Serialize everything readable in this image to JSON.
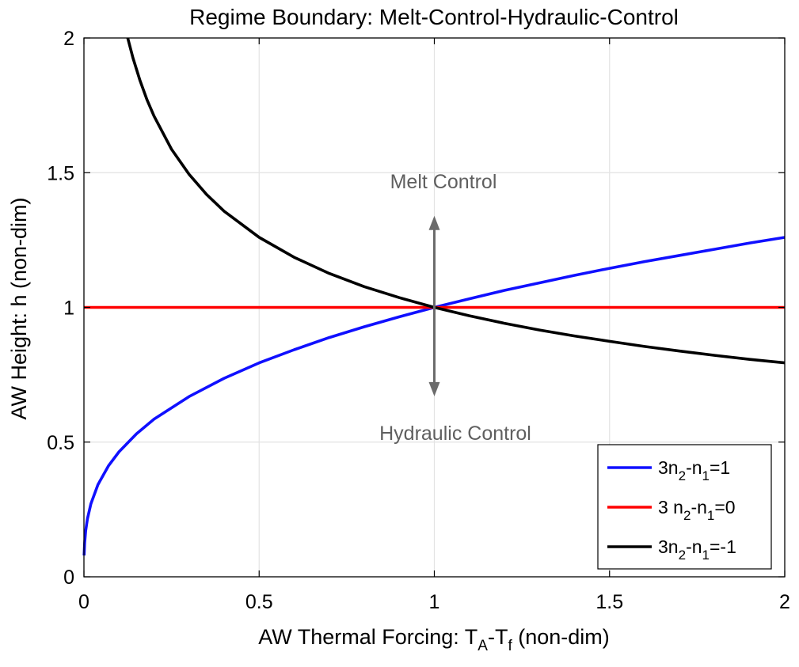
{
  "chart_data": {
    "type": "line",
    "title": "Regime Boundary: Melt-Control-Hydraulic-Control",
    "xlabel": {
      "prefix": "AW Thermal Forcing: T",
      "sub1": "A",
      "mid": "-T",
      "sub2": "f",
      "suffix": " (non-dim)"
    },
    "ylabel": "AW Height: h (non-dim)",
    "xlim": [
      0,
      2
    ],
    "ylim": [
      0,
      2
    ],
    "xticks": [
      0,
      0.5,
      1,
      1.5,
      2
    ],
    "xtick_labels": [
      "0",
      "0.5",
      "1",
      "1.5",
      "2"
    ],
    "yticks": [
      0,
      0.5,
      1,
      1.5,
      2
    ],
    "ytick_labels": [
      "0",
      "0.5",
      "1",
      "1.5",
      "2"
    ],
    "grid": true,
    "legend_position": "bottom-right",
    "series": [
      {
        "legend": {
          "a": "3n",
          "s1": "2",
          "b": "-n",
          "s2": "1",
          "c": "=1"
        },
        "color": "#1010ff",
        "x": [
          0.0005,
          0.002,
          0.005,
          0.01,
          0.02,
          0.04,
          0.07,
          0.1,
          0.15,
          0.2,
          0.3,
          0.4,
          0.5,
          0.6,
          0.7,
          0.8,
          0.9,
          1.0,
          1.1,
          1.2,
          1.3,
          1.4,
          1.5,
          1.6,
          1.7,
          1.8,
          1.9,
          2.0
        ],
        "y": [
          0.079,
          0.126,
          0.171,
          0.215,
          0.271,
          0.342,
          0.412,
          0.464,
          0.531,
          0.585,
          0.669,
          0.737,
          0.794,
          0.843,
          0.888,
          0.928,
          0.965,
          1.0,
          1.032,
          1.063,
          1.091,
          1.119,
          1.145,
          1.17,
          1.193,
          1.216,
          1.239,
          1.26
        ]
      },
      {
        "legend": {
          "a": "3 n",
          "s1": "2",
          "b": "-n",
          "s2": "1",
          "c": "=0"
        },
        "color": "#ff0000",
        "x": [
          0,
          2.0
        ],
        "y": [
          1.0,
          1.0
        ]
      },
      {
        "legend": {
          "a": "3n",
          "s1": "2",
          "b": "-n",
          "s2": "1",
          "c": "=-1"
        },
        "color": "#000000",
        "x": [
          0.125,
          0.14,
          0.16,
          0.18,
          0.2,
          0.25,
          0.3,
          0.35,
          0.4,
          0.5,
          0.6,
          0.7,
          0.8,
          0.9,
          1.0,
          1.1,
          1.2,
          1.3,
          1.4,
          1.5,
          1.6,
          1.7,
          1.8,
          1.9,
          2.0
        ],
        "y": [
          2.0,
          1.926,
          1.842,
          1.771,
          1.71,
          1.587,
          1.494,
          1.419,
          1.357,
          1.26,
          1.186,
          1.126,
          1.077,
          1.036,
          1.0,
          0.969,
          0.941,
          0.916,
          0.894,
          0.874,
          0.855,
          0.838,
          0.822,
          0.807,
          0.794
        ]
      }
    ],
    "annotations": [
      {
        "text": "Melt Control",
        "x": 1.0,
        "y": 1.48
      },
      {
        "text": "Hydraulic Control",
        "x": 0.6,
        "y": 0.5
      }
    ],
    "arrow": {
      "x": 1.0,
      "y_from": 0.67,
      "y_to": 1.34,
      "color": "#6b6b6b"
    }
  }
}
